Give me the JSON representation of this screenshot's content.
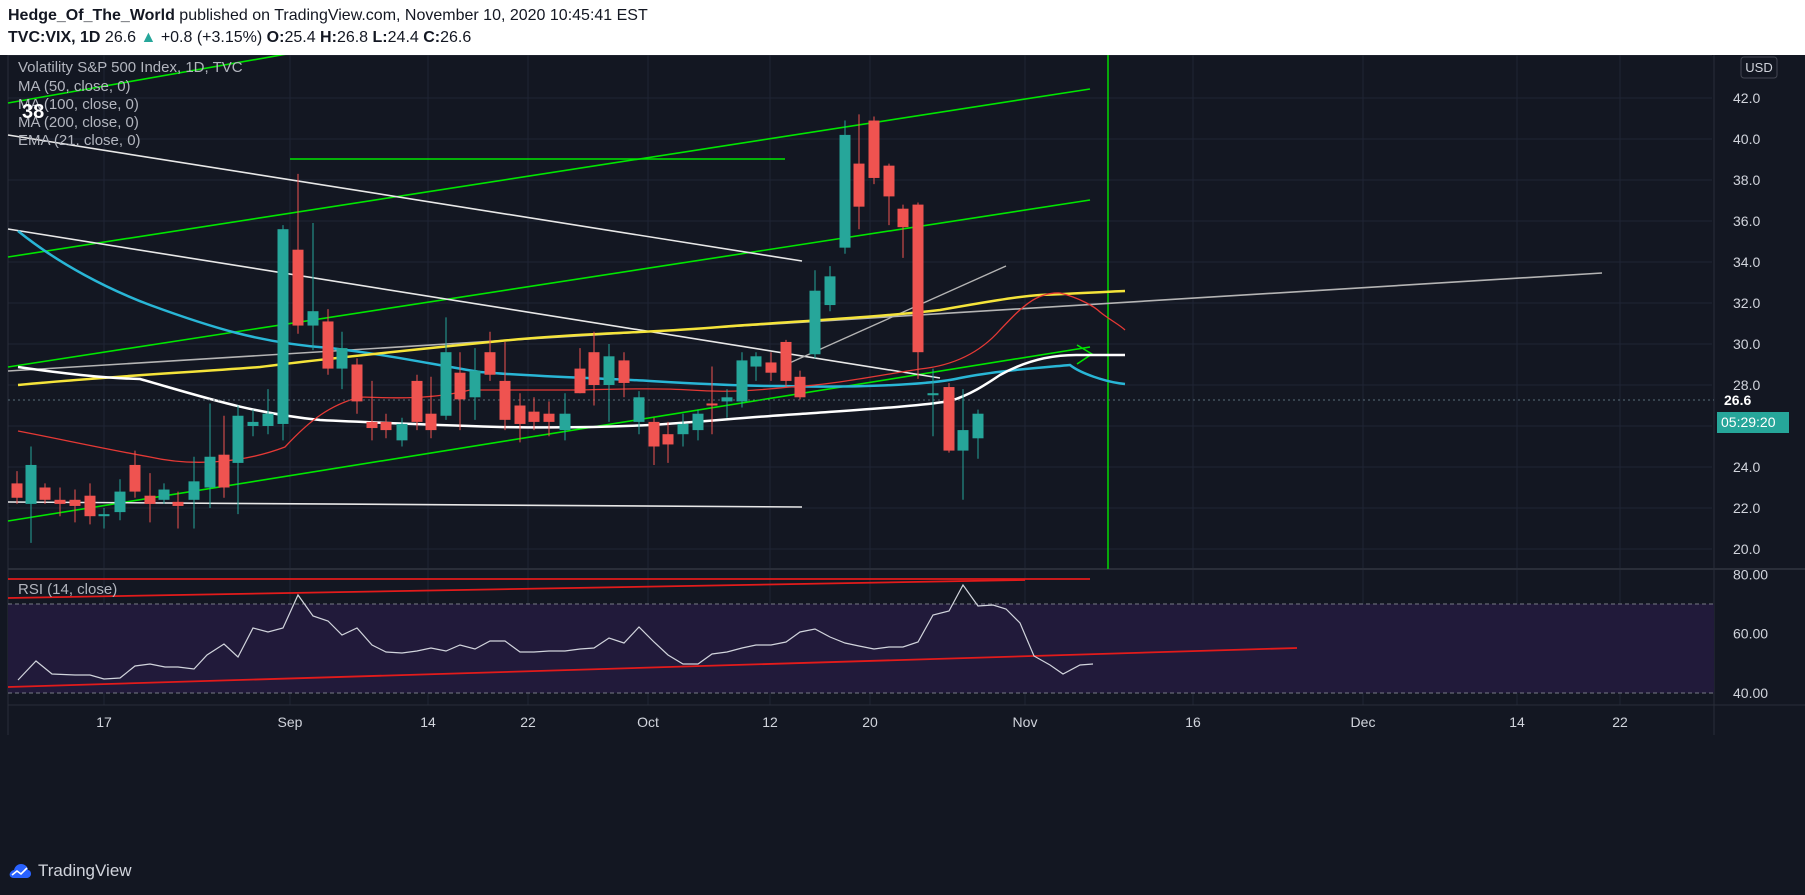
{
  "header": {
    "author": "Hedge_Of_The_World",
    "published": "published on TradingView.com, November 10, 2020 10:45:41 EST",
    "symbol": "TVC:VIX, 1D",
    "last": "26.6",
    "change": "+0.8 (+3.15%)",
    "o_label": "O:",
    "o_val": "25.4",
    "h_label": "H:",
    "h_val": "26.8",
    "l_label": "L:",
    "l_val": "24.4",
    "c_label": "C:",
    "c_val": "26.6"
  },
  "legend": {
    "title": "Volatility S&P 500 Index, 1D, TVC",
    "ma50": "MA (50, close, 0)",
    "ma100": "MA (100, close, 0)",
    "ma200": "MA (200, close, 0)",
    "ema21": "EMA (21, close, 0)",
    "overlay_number": "38"
  },
  "price_axis": {
    "currency": "USD",
    "ticks": [
      "42.0",
      "40.0",
      "38.0",
      "36.0",
      "34.0",
      "32.0",
      "30.0",
      "28.0",
      "24.0",
      "22.0",
      "20.0"
    ],
    "last_price_label": "26.6",
    "countdown": "05:29:20"
  },
  "rsi": {
    "label": "RSI (14, close)",
    "ticks": [
      "80.00",
      "60.00",
      "40.00"
    ]
  },
  "time_axis": {
    "labels": [
      "17",
      "Sep",
      "14",
      "22",
      "Oct",
      "12",
      "20",
      "Nov",
      "16",
      "Dec",
      "14",
      "22"
    ]
  },
  "colors": {
    "background": "#131722",
    "up": "#26a69a",
    "down": "#ef5350",
    "trend_green": "#00e600",
    "ma_cyan": "#29b6d6",
    "ma_yellow": "#ffeb3b",
    "rsi_line": "#d1d4dc",
    "rsi_trend": "#e31b1b"
  },
  "chart_data": {
    "type": "candlestick",
    "symbol": "TVC:VIX",
    "interval": "1D",
    "ylim": [
      19,
      43.5
    ],
    "candles": [
      {
        "x": 17,
        "o": 23.2,
        "h": 23.8,
        "l": 22.2,
        "c": 22.5
      },
      {
        "x": 31,
        "o": 22.2,
        "h": 25.0,
        "l": 20.3,
        "c": 24.1
      },
      {
        "x": 45,
        "o": 23.0,
        "h": 23.2,
        "l": 22.2,
        "c": 22.4
      },
      {
        "x": 60,
        "o": 22.4,
        "h": 23.0,
        "l": 21.6,
        "c": 22.2
      },
      {
        "x": 75,
        "o": 22.4,
        "h": 22.9,
        "l": 21.3,
        "c": 22.1
      },
      {
        "x": 90,
        "o": 22.6,
        "h": 23.2,
        "l": 21.2,
        "c": 21.6
      },
      {
        "x": 104,
        "o": 21.6,
        "h": 22.0,
        "l": 21.0,
        "c": 21.7
      },
      {
        "x": 120,
        "o": 21.8,
        "h": 23.4,
        "l": 21.4,
        "c": 22.8
      },
      {
        "x": 135,
        "o": 24.1,
        "h": 24.8,
        "l": 22.5,
        "c": 22.8
      },
      {
        "x": 150,
        "o": 22.6,
        "h": 23.7,
        "l": 21.3,
        "c": 22.2
      },
      {
        "x": 164,
        "o": 22.4,
        "h": 23.2,
        "l": 22.2,
        "c": 22.9
      },
      {
        "x": 178,
        "o": 22.3,
        "h": 22.8,
        "l": 21.0,
        "c": 22.1
      },
      {
        "x": 194,
        "o": 22.4,
        "h": 24.5,
        "l": 21.0,
        "c": 23.3
      },
      {
        "x": 210,
        "o": 23.0,
        "h": 27.1,
        "l": 22.0,
        "c": 24.5
      },
      {
        "x": 224,
        "o": 24.6,
        "h": 26.5,
        "l": 22.5,
        "c": 23.0
      },
      {
        "x": 238,
        "o": 24.2,
        "h": 27.0,
        "l": 21.7,
        "c": 26.5
      },
      {
        "x": 253,
        "o": 26.0,
        "h": 26.8,
        "l": 25.5,
        "c": 26.2
      },
      {
        "x": 268,
        "o": 26.0,
        "h": 27.8,
        "l": 25.6,
        "c": 26.6
      },
      {
        "x": 283,
        "o": 26.1,
        "h": 35.8,
        "l": 25.3,
        "c": 35.6
      },
      {
        "x": 298,
        "o": 34.6,
        "h": 38.3,
        "l": 30.5,
        "c": 30.9
      },
      {
        "x": 313,
        "o": 30.9,
        "h": 35.9,
        "l": 29.7,
        "c": 31.6
      },
      {
        "x": 328,
        "o": 31.1,
        "h": 31.7,
        "l": 28.5,
        "c": 28.8
      },
      {
        "x": 342,
        "o": 28.8,
        "h": 30.6,
        "l": 27.8,
        "c": 29.8
      },
      {
        "x": 357,
        "o": 29.0,
        "h": 29.3,
        "l": 26.6,
        "c": 27.2
      },
      {
        "x": 372,
        "o": 26.2,
        "h": 28.2,
        "l": 25.3,
        "c": 25.9
      },
      {
        "x": 386,
        "o": 26.2,
        "h": 26.6,
        "l": 25.4,
        "c": 25.8
      },
      {
        "x": 402,
        "o": 25.3,
        "h": 26.4,
        "l": 25.0,
        "c": 26.1
      },
      {
        "x": 417,
        "o": 28.2,
        "h": 28.5,
        "l": 25.8,
        "c": 26.2
      },
      {
        "x": 431,
        "o": 26.6,
        "h": 28.4,
        "l": 25.4,
        "c": 25.8
      },
      {
        "x": 446,
        "o": 26.5,
        "h": 31.3,
        "l": 26.3,
        "c": 29.6
      },
      {
        "x": 460,
        "o": 28.6,
        "h": 29.6,
        "l": 25.8,
        "c": 27.3
      },
      {
        "x": 475,
        "o": 27.4,
        "h": 29.8,
        "l": 26.3,
        "c": 28.7
      },
      {
        "x": 490,
        "o": 29.6,
        "h": 30.6,
        "l": 28.2,
        "c": 28.5
      },
      {
        "x": 505,
        "o": 28.2,
        "h": 30.1,
        "l": 25.8,
        "c": 26.3
      },
      {
        "x": 520,
        "o": 27.0,
        "h": 27.6,
        "l": 25.2,
        "c": 26.1
      },
      {
        "x": 534,
        "o": 26.7,
        "h": 27.4,
        "l": 25.8,
        "c": 26.2
      },
      {
        "x": 549,
        "o": 26.6,
        "h": 27.2,
        "l": 25.5,
        "c": 26.2
      },
      {
        "x": 565,
        "o": 25.8,
        "h": 27.6,
        "l": 25.3,
        "c": 26.6
      },
      {
        "x": 580,
        "o": 28.8,
        "h": 29.8,
        "l": 27.6,
        "c": 27.6
      },
      {
        "x": 594,
        "o": 29.6,
        "h": 30.6,
        "l": 27.0,
        "c": 28.0
      },
      {
        "x": 609,
        "o": 28.0,
        "h": 30.0,
        "l": 26.2,
        "c": 29.4
      },
      {
        "x": 624,
        "o": 29.2,
        "h": 29.6,
        "l": 27.4,
        "c": 28.1
      },
      {
        "x": 639,
        "o": 26.2,
        "h": 27.7,
        "l": 25.6,
        "c": 27.4
      },
      {
        "x": 654,
        "o": 26.2,
        "h": 26.4,
        "l": 24.1,
        "c": 25.0
      },
      {
        "x": 668,
        "o": 25.6,
        "h": 26.2,
        "l": 24.2,
        "c": 25.1
      },
      {
        "x": 683,
        "o": 25.6,
        "h": 26.6,
        "l": 25.0,
        "c": 26.1
      },
      {
        "x": 698,
        "o": 25.8,
        "h": 26.8,
        "l": 25.3,
        "c": 26.6
      },
      {
        "x": 712,
        "o": 27.1,
        "h": 28.9,
        "l": 25.6,
        "c": 27.0
      },
      {
        "x": 727,
        "o": 27.2,
        "h": 27.8,
        "l": 26.4,
        "c": 27.4
      },
      {
        "x": 742,
        "o": 27.2,
        "h": 29.6,
        "l": 26.9,
        "c": 29.2
      },
      {
        "x": 756,
        "o": 28.9,
        "h": 29.6,
        "l": 28.2,
        "c": 29.4
      },
      {
        "x": 771,
        "o": 29.1,
        "h": 29.6,
        "l": 28.2,
        "c": 28.6
      },
      {
        "x": 786,
        "o": 30.1,
        "h": 30.2,
        "l": 27.9,
        "c": 28.2
      },
      {
        "x": 800,
        "o": 28.4,
        "h": 28.7,
        "l": 27.3,
        "c": 27.4
      },
      {
        "x": 815,
        "o": 29.5,
        "h": 33.6,
        "l": 29.3,
        "c": 32.6
      },
      {
        "x": 830,
        "o": 31.9,
        "h": 33.8,
        "l": 31.6,
        "c": 33.3
      },
      {
        "x": 845,
        "o": 34.7,
        "h": 40.9,
        "l": 34.4,
        "c": 40.2
      },
      {
        "x": 859,
        "o": 38.8,
        "h": 41.2,
        "l": 35.6,
        "c": 36.7
      },
      {
        "x": 874,
        "o": 40.9,
        "h": 41.1,
        "l": 37.8,
        "c": 38.1
      },
      {
        "x": 889,
        "o": 38.7,
        "h": 38.8,
        "l": 35.8,
        "c": 37.2
      },
      {
        "x": 903,
        "o": 36.6,
        "h": 36.8,
        "l": 34.2,
        "c": 35.7
      },
      {
        "x": 918,
        "o": 36.8,
        "h": 36.9,
        "l": 28.3,
        "c": 29.6
      },
      {
        "x": 933,
        "o": 27.5,
        "h": 28.8,
        "l": 25.5,
        "c": 27.6
      },
      {
        "x": 949,
        "o": 27.9,
        "h": 28.1,
        "l": 24.7,
        "c": 24.8
      },
      {
        "x": 963,
        "o": 24.8,
        "h": 27.8,
        "l": 22.4,
        "c": 25.8
      },
      {
        "x": 978,
        "o": 25.4,
        "h": 26.8,
        "l": 24.4,
        "c": 26.6
      }
    ]
  }
}
